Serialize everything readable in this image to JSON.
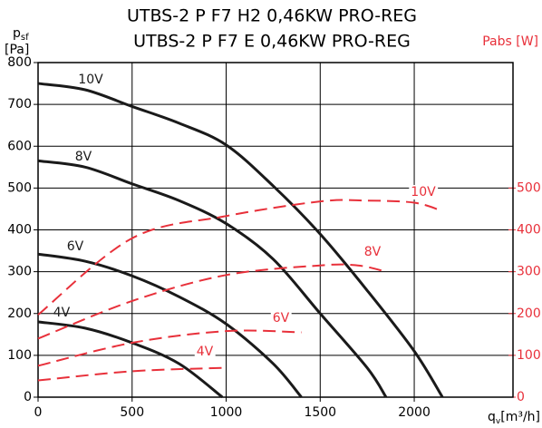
{
  "chart_data": {
    "type": "line",
    "title": [
      "UTBS-2 P F7 H2 0,46KW PRO-REG",
      "UTBS-2 P F7 E 0,46KW PRO-REG"
    ],
    "y_label": {
      "symbol": "p",
      "subscript": "sf",
      "unit": "[Pa]"
    },
    "y2_label": "Pabs [W]",
    "x_label": {
      "symbol": "q",
      "subscript": "v",
      "unit": "[m³/h]"
    },
    "xlim": [
      0,
      2525
    ],
    "xticks": [
      0,
      500,
      1000,
      1500,
      2000
    ],
    "ylim": [
      0,
      800
    ],
    "yticks": [
      0,
      100,
      200,
      300,
      400,
      500,
      600,
      700,
      800
    ],
    "y2lim": [
      0,
      800
    ],
    "y2ticks": [
      0,
      100,
      200,
      300,
      400,
      500
    ],
    "grid": true,
    "series": [
      {
        "name": "10V",
        "color": "#1a1a1a",
        "x": [
          0,
          250,
          500,
          750,
          1000,
          1250,
          1500,
          1750,
          2000,
          2150
        ],
        "values": [
          750,
          735,
          695,
          655,
          603,
          505,
          390,
          255,
          110,
          0
        ]
      },
      {
        "name": "8V",
        "color": "#1a1a1a",
        "x": [
          0,
          250,
          500,
          750,
          1000,
          1250,
          1500,
          1750,
          1850
        ],
        "values": [
          565,
          550,
          510,
          470,
          415,
          330,
          200,
          70,
          0
        ]
      },
      {
        "name": "6V",
        "color": "#1a1a1a",
        "x": [
          0,
          250,
          500,
          750,
          1000,
          1250,
          1400
        ],
        "values": [
          342,
          325,
          290,
          240,
          175,
          80,
          0
        ]
      },
      {
        "name": "4V",
        "color": "#1a1a1a",
        "x": [
          0,
          250,
          500,
          750,
          980
        ],
        "values": [
          180,
          165,
          130,
          80,
          0
        ]
      },
      {
        "name": "10V",
        "color": "#e8303a",
        "axis": "y2",
        "x": [
          0,
          500,
          1000,
          1500,
          1750,
          2000,
          2150
        ],
        "values": [
          197,
          380,
          433,
          468,
          470,
          465,
          445
        ]
      },
      {
        "name": "8V",
        "color": "#e8303a",
        "axis": "y2",
        "x": [
          0,
          500,
          1000,
          1500,
          1700,
          1850
        ],
        "values": [
          140,
          230,
          292,
          315,
          315,
          300
        ]
      },
      {
        "name": "6V",
        "color": "#e8303a",
        "axis": "y2",
        "x": [
          0,
          500,
          1000,
          1400
        ],
        "values": [
          75,
          130,
          158,
          155
        ]
      },
      {
        "name": "4V",
        "color": "#e8303a",
        "axis": "y2",
        "x": [
          0,
          500,
          980
        ],
        "values": [
          40,
          62,
          70
        ]
      }
    ]
  }
}
